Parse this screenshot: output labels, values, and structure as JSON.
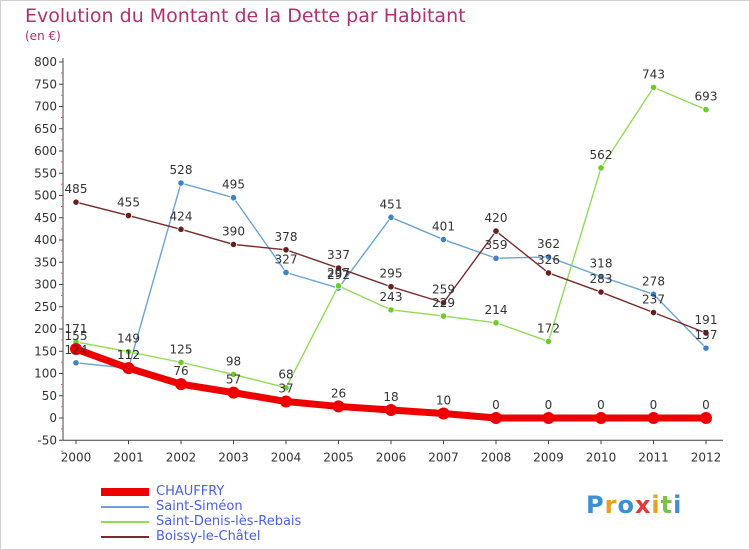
{
  "title": "Evolution du Montant de la Dette par Habitant",
  "subtitle": "(en €)",
  "logo_text": "Proxiti",
  "chart_data": {
    "type": "line",
    "title": "Evolution du Montant de la Dette par Habitant",
    "subtitle": "(en €)",
    "x": [
      "2000",
      "2001",
      "2002",
      "2003",
      "2004",
      "2005",
      "2006",
      "2007",
      "2008",
      "2009",
      "2010",
      "2011",
      "2012"
    ],
    "ylim": [
      -50,
      800
    ],
    "yticks": [
      "-50",
      "0",
      "50",
      "100",
      "150",
      "200",
      "250",
      "300",
      "350",
      "400",
      "450",
      "500",
      "550",
      "600",
      "650",
      "700",
      "750",
      "800"
    ],
    "grid": false,
    "legend_position": "bottom-left",
    "series": [
      {
        "name": "CHAUFFRY",
        "color": "#ee0000",
        "width": 7,
        "values": [
          155,
          112,
          76,
          57,
          37,
          26,
          18,
          10,
          0,
          0,
          0,
          0,
          0
        ]
      },
      {
        "name": "Saint-Siméon",
        "color": "#6aa3d6",
        "width": 1.4,
        "values": [
          124,
          112,
          528,
          495,
          327,
          292,
          451,
          401,
          359,
          362,
          318,
          278,
          157
        ]
      },
      {
        "name": "Saint-Denis-lès-Rebais",
        "color": "#90dd55",
        "width": 1.4,
        "values": [
          171,
          149,
          125,
          98,
          68,
          297,
          243,
          229,
          214,
          172,
          562,
          743,
          693
        ]
      },
      {
        "name": "Boissy-le-Châtel",
        "color": "#7a2a2a",
        "width": 1.4,
        "values": [
          485,
          455,
          424,
          390,
          378,
          337,
          295,
          259,
          420,
          326,
          283,
          237,
          191
        ]
      }
    ]
  }
}
